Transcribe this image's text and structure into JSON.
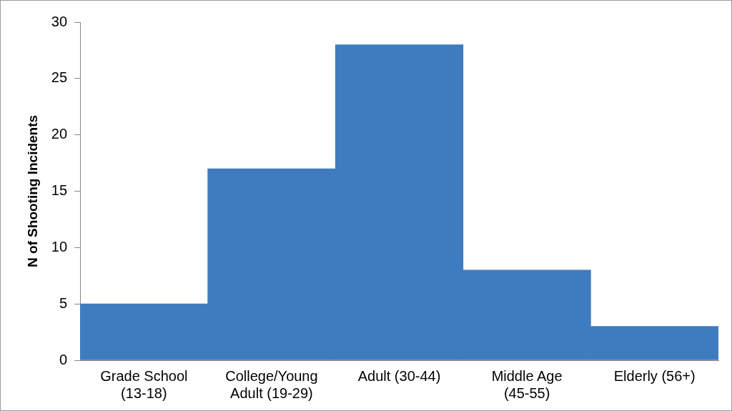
{
  "chart_data": {
    "type": "bar",
    "ylabel": "N of Shooting Incidents",
    "categories": [
      "Grade School (13-18)",
      "College/Young Adult (19-29)",
      "Adult (30-44)",
      "Middle Age (45-55)",
      "Elderly (56+)"
    ],
    "values": [
      5,
      17,
      28,
      8,
      3
    ],
    "color": "#3f7cbf",
    "ylim": [
      0,
      30
    ],
    "yticks": [
      0,
      5,
      10,
      15,
      20,
      25,
      30
    ],
    "grid": false,
    "legend": false
  }
}
